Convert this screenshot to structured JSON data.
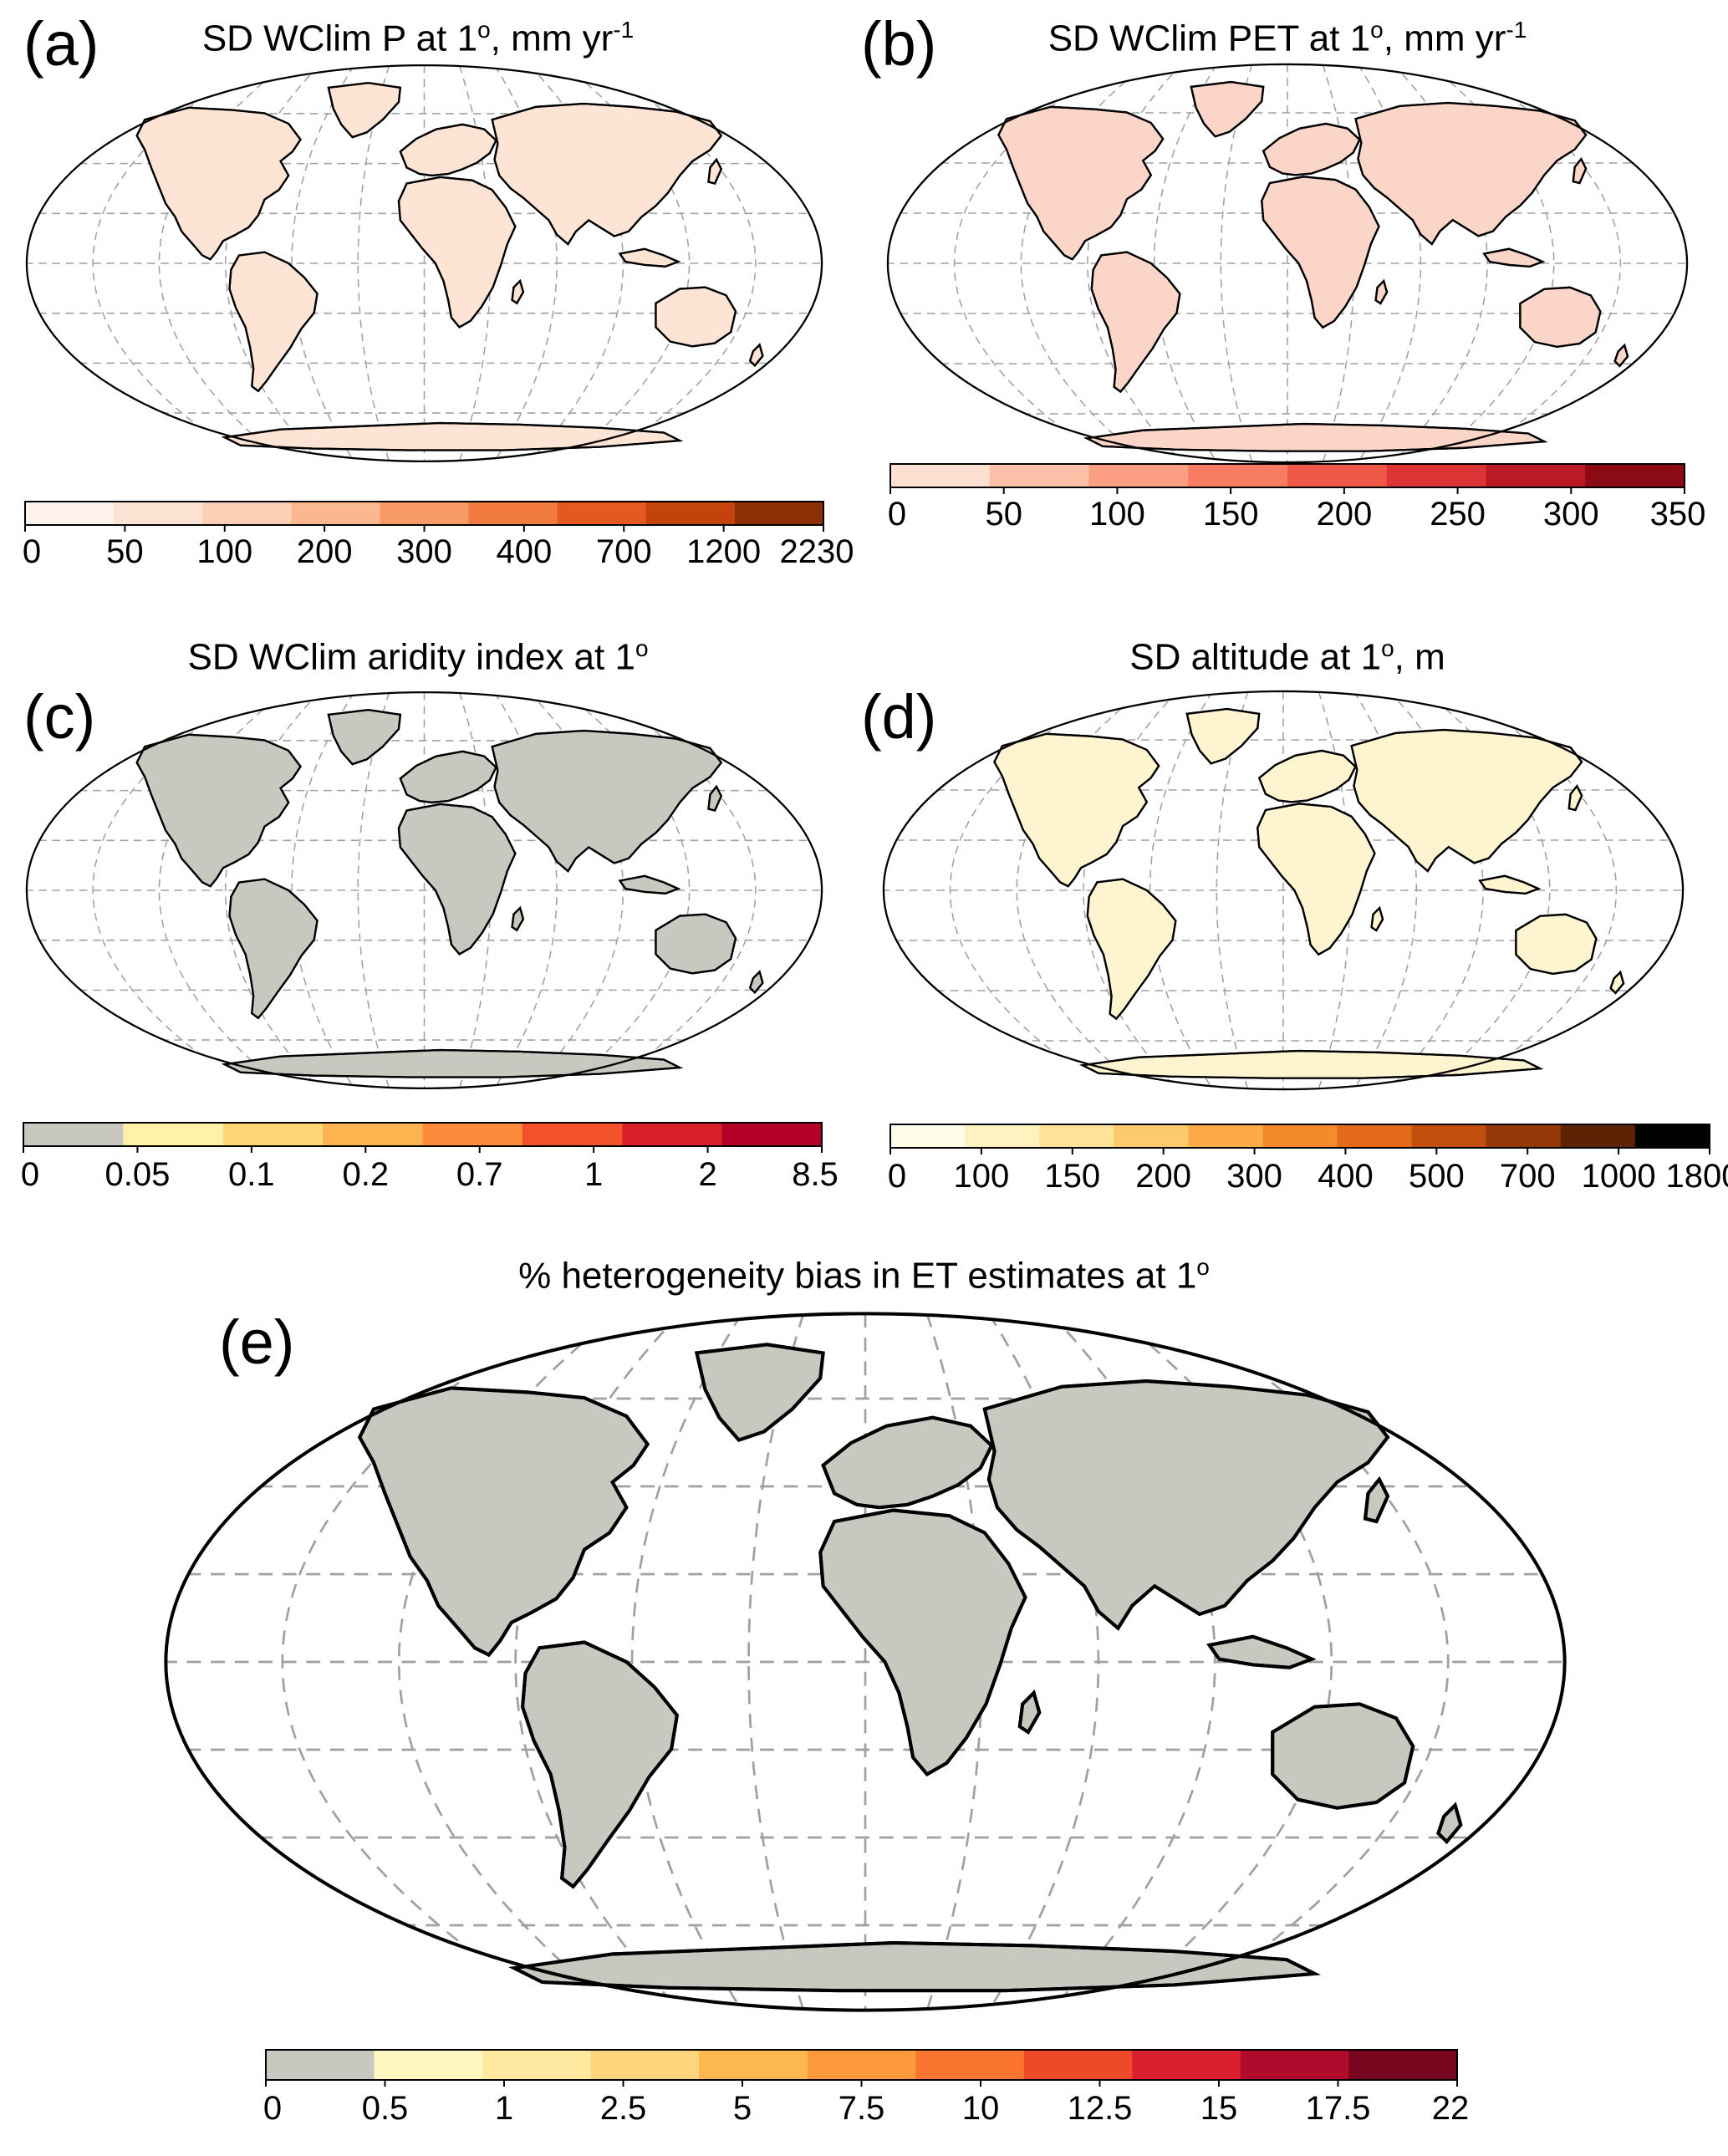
{
  "colors": {
    "land_grey": "#c8c8c0",
    "grid": "#a0a0a0",
    "outline": "#000000"
  },
  "panels": [
    {
      "id": "a",
      "label": "(a)",
      "title": "SD WClim P at 1°, mm yr-1",
      "title_main": "SD WClim P at 1",
      "title_sup1": "o",
      "title_after": ", mm yr",
      "title_sup2": "-1",
      "land_color": "#fde4d4",
      "hotspot_color": "#e8743c",
      "ticks": [
        "0",
        "50",
        "100",
        "200",
        "300",
        "400",
        "700",
        "1200",
        "2230"
      ],
      "colorbar": [
        "#fff2ea",
        "#fde3d3",
        "#fcd0b4",
        "#fbb890",
        "#f89a66",
        "#f07a40",
        "#e35a20",
        "#c4420c",
        "#8b3007"
      ]
    },
    {
      "id": "b",
      "label": "(b)",
      "title": "SD WClim PET at 1°, mm yr-1",
      "title_main": "SD WClim PET at 1",
      "title_sup1": "o",
      "title_after": ", mm yr",
      "title_sup2": "-1",
      "land_color": "#fbd6c8",
      "hotspot_color": "#e04a3a",
      "ticks": [
        "0",
        "50",
        "100",
        "150",
        "200",
        "250",
        "300",
        "350"
      ],
      "colorbar": [
        "#fde0d2",
        "#fcc0a8",
        "#fb9e82",
        "#f77c62",
        "#ee5848",
        "#dc3434",
        "#bb1a24",
        "#8c0a14"
      ]
    },
    {
      "id": "c",
      "label": "(c)",
      "title": "SD WClim aridity index at 1°",
      "title_main": "SD WClim aridity index at 1",
      "title_sup1": "o",
      "title_after": "",
      "title_sup2": "",
      "land_color": "#c8c8c0",
      "hotspot_color": "#f3a43c",
      "ticks": [
        "0",
        "0.05",
        "0.1",
        "0.2",
        "0.7",
        "1",
        "2",
        "8.5"
      ],
      "colorbar": [
        "#c8c8c0",
        "#fff2a8",
        "#fed676",
        "#feb450",
        "#fc8c3c",
        "#f3502c",
        "#d9202a",
        "#b40026"
      ]
    },
    {
      "id": "d",
      "label": "(d)",
      "title": "SD altitude at 1°, m",
      "title_main": "SD altitude at 1",
      "title_sup1": "o",
      "title_after": ", m",
      "title_sup2": "",
      "land_color": "#fff4d0",
      "hotspot_color": "#e07020",
      "ticks": [
        "0",
        "100",
        "150",
        "200",
        "300",
        "400",
        "500",
        "700",
        "1000",
        "1800"
      ],
      "colorbar": [
        "#fffce8",
        "#fff2c0",
        "#fee398",
        "#fecb6c",
        "#fdab48",
        "#f58a2c",
        "#e26a18",
        "#c14e0c",
        "#933806",
        "#5c2404",
        "#000000"
      ]
    },
    {
      "id": "e",
      "label": "(e)",
      "title": "% heterogeneity bias in ET estimates at 1°",
      "title_main": "% heterogeneity bias in ET estimates at 1",
      "title_sup1": "o",
      "title_after": "",
      "title_sup2": "",
      "land_color": "#c8c8c0",
      "hotspot_color": "#f7b452",
      "ticks": [
        "0",
        "0.5",
        "1",
        "2.5",
        "5",
        "7.5",
        "10",
        "12.5",
        "15",
        "17.5",
        "22"
      ],
      "colorbar": [
        "#c8c8c0",
        "#fff8c0",
        "#ffe9a0",
        "#fed57a",
        "#feb850",
        "#fd9a3c",
        "#f97530",
        "#ee4a2a",
        "#d82030",
        "#b00a2c",
        "#78051e"
      ]
    }
  ]
}
